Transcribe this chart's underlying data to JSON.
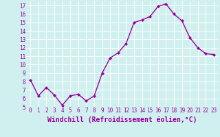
{
  "x": [
    0,
    1,
    2,
    3,
    4,
    5,
    6,
    7,
    8,
    9,
    10,
    11,
    12,
    13,
    14,
    15,
    16,
    17,
    18,
    19,
    20,
    21,
    22,
    23
  ],
  "y": [
    8.2,
    6.3,
    7.3,
    6.4,
    5.2,
    6.3,
    6.5,
    5.7,
    6.3,
    9.0,
    10.8,
    11.4,
    12.5,
    15.0,
    15.3,
    15.7,
    16.9,
    17.2,
    16.0,
    15.2,
    13.2,
    12.0,
    11.3,
    11.2
  ],
  "line_color": "#990099",
  "marker": "D",
  "marker_size": 2.0,
  "linewidth": 1.0,
  "xlabel": "Windchill (Refroidissement éolien,°C)",
  "xlim": [
    -0.5,
    23.5
  ],
  "ylim": [
    5,
    17.5
  ],
  "yticks": [
    5,
    6,
    7,
    8,
    9,
    10,
    11,
    12,
    13,
    14,
    15,
    16,
    17
  ],
  "xticks": [
    0,
    1,
    2,
    3,
    4,
    5,
    6,
    7,
    8,
    9,
    10,
    11,
    12,
    13,
    14,
    15,
    16,
    17,
    18,
    19,
    20,
    21,
    22,
    23
  ],
  "background_color": "#d0f0f0",
  "grid_color": "#ffffff",
  "tick_label_color": "#990099",
  "xlabel_color": "#990099",
  "tick_fontsize": 5.5,
  "xlabel_fontsize": 7.0
}
